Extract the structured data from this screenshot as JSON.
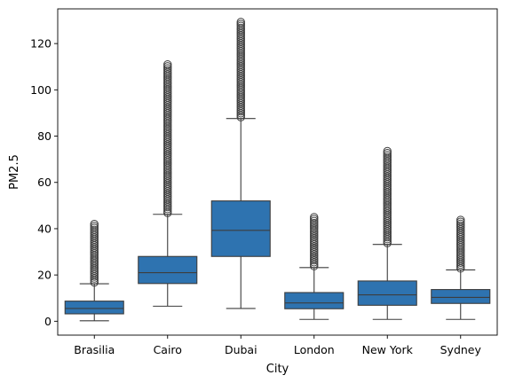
{
  "chart_data": {
    "type": "box",
    "title": "",
    "xlabel": "City",
    "ylabel": "PM2.5",
    "ylim": [
      -6,
      135
    ],
    "yticks": [
      0,
      20,
      40,
      60,
      80,
      100,
      120
    ],
    "grid": false,
    "legend": "none",
    "colors": {
      "box_fill": "#2e73b0",
      "line": "#3d3d3d",
      "frame": "#000000"
    },
    "categories": [
      "Brasilia",
      "Cairo",
      "Dubai",
      "London",
      "New York",
      "Sydney"
    ],
    "boxes": [
      {
        "category": "Brasilia",
        "whisker_low": 0.2,
        "q1": 3.2,
        "median": 5.5,
        "q3": 8.7,
        "whisker_high": 16.2,
        "outlier_low": 16.8,
        "outlier_high": 42.0
      },
      {
        "category": "Cairo",
        "whisker_low": 6.5,
        "q1": 16.3,
        "median": 21.0,
        "q3": 28.0,
        "whisker_high": 46.2,
        "outlier_low": 46.8,
        "outlier_high": 111.0
      },
      {
        "category": "Dubai",
        "whisker_low": 5.5,
        "q1": 28.0,
        "median": 39.3,
        "q3": 52.0,
        "whisker_high": 87.6,
        "outlier_low": 88.2,
        "outlier_high": 129.3
      },
      {
        "category": "London",
        "whisker_low": 0.8,
        "q1": 5.4,
        "median": 7.9,
        "q3": 12.4,
        "whisker_high": 23.2,
        "outlier_low": 23.8,
        "outlier_high": 45.0
      },
      {
        "category": "New York",
        "whisker_low": 0.8,
        "q1": 6.9,
        "median": 11.4,
        "q3": 17.4,
        "whisker_high": 33.2,
        "outlier_low": 33.8,
        "outlier_high": 73.5
      },
      {
        "category": "Sydney",
        "whisker_low": 0.8,
        "q1": 7.7,
        "median": 10.3,
        "q3": 13.7,
        "whisker_high": 22.2,
        "outlier_low": 22.8,
        "outlier_high": 43.8
      }
    ]
  }
}
